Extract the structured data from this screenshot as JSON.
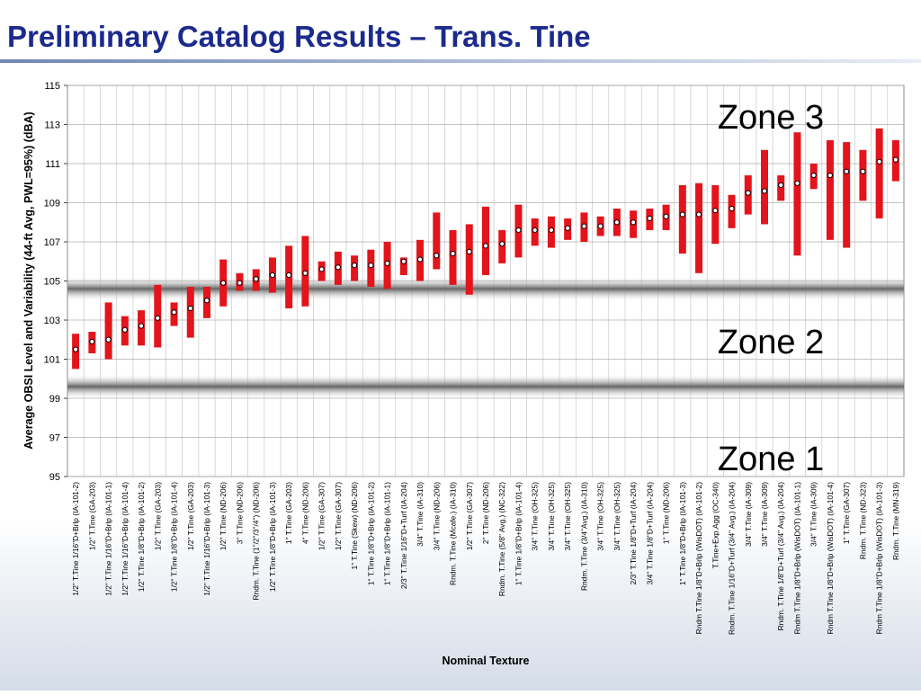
{
  "chart_data": {
    "type": "range",
    "title": "Preliminary Catalog Results – Trans. Tine",
    "y_label": "Average OBSI Level and Variability (44-ft Avg, PWL=95%) (dBA)",
    "x_label": "Nominal Texture",
    "annotations": [
      "Zone 3",
      "Zone 2",
      "Zone 1"
    ],
    "bands": [
      99.6,
      104.6
    ],
    "ylim": [
      95,
      115
    ],
    "yticks": [
      95,
      97,
      99,
      101,
      103,
      105,
      107,
      109,
      111,
      113,
      115
    ],
    "grid": true,
    "color": "#e3141b",
    "categories": [
      "1/2\" T.Tine 1/16\"D+Brlp (IA-101-2)",
      "1/2\" T.Tine (GA-203)",
      "1/2\" T.Tine 1/16\"D+Brlp (IA-101-1)",
      "1/2\" T.Tine 1/16\"D+Brlp (IA-101-4)",
      "1/2\" T.Tine 1/8\"D+Brlp (IA-101-2)",
      "1/2\" T.Tine (GA-203)",
      "1/2\" T.Tine 1/8\"D+Brlp (IA-101-4)",
      "1/2\" T.Tine (GA-203)",
      "1/2\" T.Tine 1/16\"D+Brlp (IA-101-3)",
      "1/2\" T.Tine (ND-206)",
      "3\" T.Tine (ND-206)",
      "Rndm. T.Tine (1\"/2\"/3\"/4\") (ND-206)",
      "1/2\" T.Tine 1/8\"D+Brlp (IA-101-3)",
      "1\" T.Tine (GA-203)",
      "4\" T.Tine (ND-206)",
      "1/2\" T.Tine (GA-307)",
      "1/2\" T.Tine (GA-307)",
      "1\" T.Tine (Skew) (ND-206)",
      "1\" T.Tine 1/8\"D+Brlp (IA-101-2)",
      "1\" T.Tine 1/8\"D+Brlp (IA-101-1)",
      "2/3\" T.Tine 1/16\"D+Turf (IA-204)",
      "3/4\" T.Tine (IA-310)",
      "3/4\" T.Tine (ND-206)",
      "Rndm. T.Tine (Mcafe.) (IA-310)",
      "1/2\" T.Tine (GA-307)",
      "2\" T.Tine (ND-206)",
      "Rndm. T.Tine (5/8\" Avg.) (NC-322)",
      "1\" T.Tine 1/8\"D+Brlp (IA-101-4)",
      "3/4\" T.Tine (OH-325)",
      "3/4\" T.Tine (OH-325)",
      "3/4\" T.Tine (OH-325)",
      "Rndm. T.Tine (3/4\"Avg.) (IA-310)",
      "3/4\" T.Tine (OH-325)",
      "3/4\" T.Tine (OH-325)",
      "2/3\" T.Tine 1/8\"D+Turf (IA-204)",
      "3/4\" T.Tine 1/8\"D+Turf (IA-204)",
      "1\" T.Tine (ND-206)",
      "1\" T.Tine 1/8\"D+Brlp (IA-101-3)",
      "Rndm T.Tine 1/8\"D+Brlp (WisDOT) (IA-101-2)",
      "T.Tine+Exp.Agg (OC-340)",
      "Rndm. T.Tine 1/16\"D+Turf (3/4\" Avg.) (IA-204)",
      "3/4\" T.Tine (IA-309)",
      "3/4\" T.Tine (IA-309)",
      "Rndm. T.Tine 1/8\"D+Turf (3/4\" Avg.) (IA-204)",
      "Rndm T.Tine 1/8\"D+Brlp (WisDOT) (IA-101-1)",
      "3/4\" T.Tine (IA-309)",
      "Rndm T.Tine 1/8\"D+Brlp (WisDOT) (IA-101-4)",
      "1\" T.Tine (GA-307)",
      "Rndm. T.Tine (ND-323)",
      "Rndm T.Tine 1/8\"D+Brlp (WisDOT) (IA-101-3)",
      "Rndm. T.Tine (MN-319)"
    ],
    "values": [
      101.5,
      101.9,
      102.0,
      102.5,
      102.7,
      103.1,
      103.4,
      103.6,
      104.0,
      104.9,
      104.9,
      105.1,
      105.3,
      105.3,
      105.4,
      105.6,
      105.7,
      105.8,
      105.8,
      105.9,
      106.0,
      106.1,
      106.3,
      106.4,
      106.5,
      106.8,
      106.9,
      107.6,
      107.6,
      107.6,
      107.7,
      107.8,
      107.8,
      108.0,
      108.0,
      108.2,
      108.3,
      108.4,
      108.4,
      108.6,
      108.7,
      109.5,
      109.6,
      109.9,
      110.0,
      110.4,
      110.4,
      110.6,
      110.6,
      111.1,
      111.2
    ],
    "low": [
      100.5,
      101.3,
      101.0,
      101.7,
      101.7,
      101.6,
      102.7,
      102.1,
      103.1,
      103.7,
      104.5,
      104.5,
      104.4,
      103.6,
      103.7,
      105.0,
      104.8,
      105.0,
      104.7,
      104.6,
      105.3,
      105.0,
      105.6,
      104.8,
      104.3,
      105.3,
      105.9,
      106.2,
      106.8,
      106.7,
      107.1,
      107.0,
      107.3,
      107.3,
      107.2,
      107.6,
      107.6,
      106.4,
      105.4,
      106.9,
      107.7,
      108.4,
      107.9,
      109.1,
      106.3,
      109.7,
      107.1,
      106.7,
      109.1,
      108.2,
      110.1
    ],
    "high": [
      102.3,
      102.4,
      103.9,
      103.2,
      103.5,
      104.8,
      103.9,
      104.7,
      104.7,
      106.1,
      105.4,
      105.6,
      106.2,
      106.8,
      107.3,
      106.0,
      106.5,
      106.3,
      106.6,
      107.0,
      106.2,
      107.1,
      108.5,
      107.6,
      107.9,
      108.8,
      107.6,
      108.9,
      108.2,
      108.3,
      108.2,
      108.5,
      108.3,
      108.7,
      108.6,
      108.7,
      108.9,
      109.9,
      110.0,
      109.9,
      109.4,
      110.4,
      111.7,
      110.4,
      112.6,
      111.0,
      112.2,
      112.1,
      111.7,
      112.8,
      112.2
    ]
  }
}
